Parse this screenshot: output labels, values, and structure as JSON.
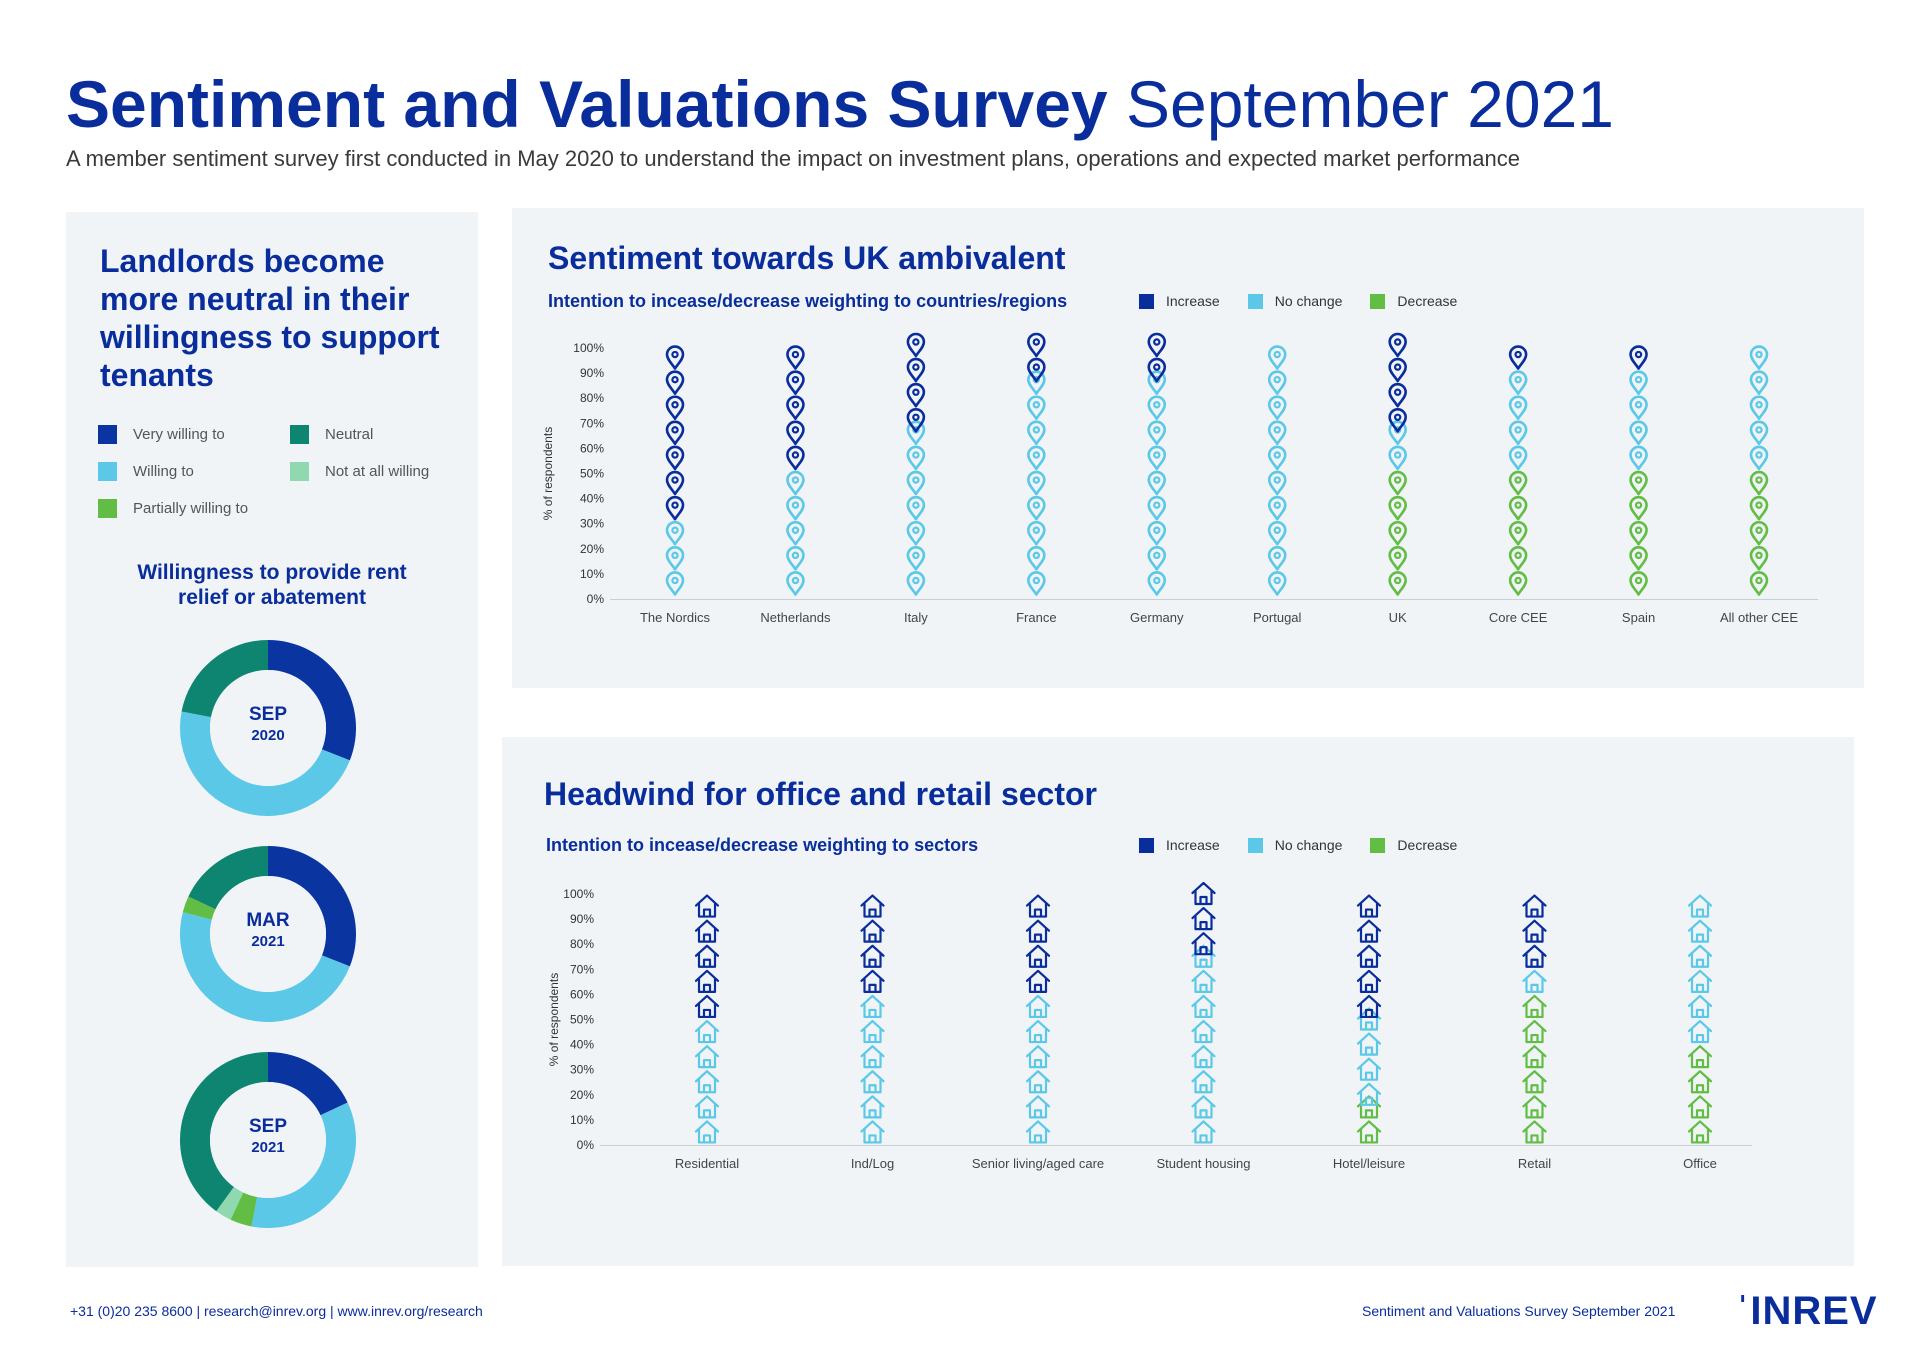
{
  "header": {
    "title_bold": "Sentiment and Valuations Survey",
    "title_light": "September 2021",
    "subtitle": "A member sentiment survey first conducted in May 2020 to understand the impact on investment plans, operations and expected market performance"
  },
  "colors": {
    "increase": "#0a2d9c",
    "no_change": "#5bc8e8",
    "decrease": "#62bd45",
    "very_willing": "#0a35a0",
    "willing": "#5bc8e8",
    "partially_willing": "#62bd45",
    "neutral": "#0e8570",
    "not_at_all": "#8fd8b0",
    "panel": "#f0f4f7"
  },
  "left": {
    "headline": "Landlords become more neutral in their willingness to support tenants",
    "legend": [
      {
        "label": "Very willing to",
        "color": "#0a35a0"
      },
      {
        "label": "Neutral",
        "color": "#0e8570"
      },
      {
        "label": "Willing to",
        "color": "#5bc8e8"
      },
      {
        "label": "Not at all willing",
        "color": "#8fd8b0"
      },
      {
        "label": "Partially willing to",
        "color": "#62bd45"
      }
    ],
    "donut_title": "Willingness to provide rent relief or abatement"
  },
  "legend_labels": {
    "increase": "Increase",
    "no_change": "No change",
    "decrease": "Decrease"
  },
  "uk_chart": {
    "title": "Sentiment towards UK ambivalent",
    "subtitle": "Intention to incease/decrease weighting to countries/regions"
  },
  "sector_chart": {
    "title": "Headwind for office and retail sector",
    "subtitle": "Intention to incease/decrease weighting to sectors"
  },
  "chart_data": [
    {
      "type": "pie",
      "title": "Willingness to provide rent relief or abatement",
      "slices_order": [
        "Very willing to",
        "Willing to",
        "Partially willing to",
        "Not at all willing",
        "Neutral"
      ],
      "donuts": [
        {
          "month": "SEP",
          "year": "2020",
          "values": [
            31,
            47,
            0,
            0,
            22
          ]
        },
        {
          "month": "MAR",
          "year": "2021",
          "values": [
            31,
            48,
            3,
            0,
            18
          ]
        },
        {
          "month": "SEP",
          "year": "2021",
          "values": [
            18,
            35,
            4,
            3,
            40
          ]
        }
      ]
    },
    {
      "type": "bar",
      "title": "Sentiment towards UK ambivalent",
      "subtitle": "Intention to incease/decrease weighting to countries/regions",
      "ylabel": "% of respondents",
      "ylim": [
        0,
        100
      ],
      "yticks": [
        "0%",
        "10%",
        "20%",
        "30%",
        "40%",
        "50%",
        "60%",
        "70%",
        "80%",
        "90%",
        "100%"
      ],
      "categories": [
        "The Nordics",
        "Netherlands",
        "Italy",
        "France",
        "Germany",
        "Portugal",
        "UK",
        "Core CEE",
        "Spain",
        "All other CEE"
      ],
      "series": [
        {
          "name": "Decrease",
          "values": [
            0,
            0,
            0,
            0,
            0,
            0,
            50,
            50,
            50,
            50
          ]
        },
        {
          "name": "No change",
          "values": [
            30,
            50,
            65,
            85,
            85,
            100,
            15,
            40,
            40,
            50
          ]
        },
        {
          "name": "Increase",
          "values": [
            70,
            50,
            35,
            15,
            15,
            0,
            35,
            10,
            10,
            0
          ]
        }
      ]
    },
    {
      "type": "bar",
      "title": "Headwind for office and retail sector",
      "subtitle": "Intention to incease/decrease weighting to sectors",
      "ylabel": "% of respondents",
      "ylim": [
        0,
        100
      ],
      "yticks": [
        "0%",
        "10%",
        "20%",
        "30%",
        "40%",
        "50%",
        "60%",
        "70%",
        "80%",
        "90%",
        "100%"
      ],
      "categories": [
        "Residential",
        "Ind/Log",
        "Senior living/aged care",
        "Student housing",
        "Hotel/leisure",
        "Retail",
        "Office"
      ],
      "series": [
        {
          "name": "Decrease",
          "values": [
            0,
            0,
            0,
            0,
            15,
            60,
            40
          ]
        },
        {
          "name": "No change",
          "values": [
            50,
            60,
            60,
            75,
            35,
            10,
            60
          ]
        },
        {
          "name": "Increase",
          "values": [
            50,
            40,
            40,
            25,
            50,
            30,
            0
          ]
        }
      ]
    }
  ],
  "footer": {
    "contact": "+31 (0)20 235 8600 | research@inrev.org | www.inrev.org/research",
    "right": "Sentiment and Valuations Survey September 2021",
    "logo": "INREV"
  }
}
